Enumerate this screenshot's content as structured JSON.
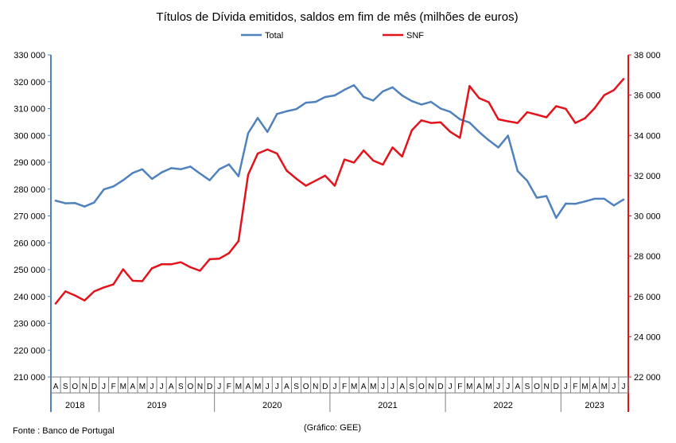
{
  "chart_data": {
    "type": "line",
    "title": "Títulos de Dívida emitidos, saldos em fim de mês  (milhões de euros)",
    "legend": {
      "placement": "top-center"
    },
    "x": [
      "2018-08",
      "2018-09",
      "2018-10",
      "2018-11",
      "2018-12",
      "2019-01",
      "2019-02",
      "2019-03",
      "2019-04",
      "2019-05",
      "2019-06",
      "2019-07",
      "2019-08",
      "2019-09",
      "2019-10",
      "2019-11",
      "2019-12",
      "2020-01",
      "2020-02",
      "2020-03",
      "2020-04",
      "2020-05",
      "2020-06",
      "2020-07",
      "2020-08",
      "2020-09",
      "2020-10",
      "2020-11",
      "2020-12",
      "2021-01",
      "2021-02",
      "2021-03",
      "2021-04",
      "2021-05",
      "2021-06",
      "2021-07",
      "2021-08",
      "2021-09",
      "2021-10",
      "2021-11",
      "2021-12",
      "2022-01",
      "2022-02",
      "2022-03",
      "2022-04",
      "2022-05",
      "2022-06",
      "2022-07",
      "2022-08",
      "2022-09",
      "2022-10",
      "2022-11",
      "2022-12",
      "2023-01",
      "2023-02",
      "2023-03",
      "2023-04",
      "2023-05",
      "2023-06",
      "2023-07"
    ],
    "month_labels": [
      "A",
      "S",
      "O",
      "N",
      "D",
      "J",
      "F",
      "M",
      "A",
      "M",
      "J",
      "J",
      "A",
      "S",
      "O",
      "N",
      "D",
      "J",
      "F",
      "M",
      "A",
      "M",
      "J",
      "J",
      "A",
      "S",
      "O",
      "N",
      "D",
      "J",
      "F",
      "M",
      "A",
      "M",
      "J",
      "J",
      "A",
      "S",
      "O",
      "N",
      "D",
      "J",
      "F",
      "M",
      "A",
      "M",
      "J",
      "J",
      "A",
      "S",
      "O",
      "N",
      "D",
      "J",
      "F",
      "M",
      "A",
      "M",
      "J",
      "J"
    ],
    "years": [
      {
        "label": "2018",
        "start": 0,
        "count": 5
      },
      {
        "label": "2019",
        "start": 5,
        "count": 12
      },
      {
        "label": "2020",
        "start": 17,
        "count": 12
      },
      {
        "label": "2021",
        "start": 29,
        "count": 12
      },
      {
        "label": "2022",
        "start": 41,
        "count": 12
      },
      {
        "label": "2023",
        "start": 53,
        "count": 7
      }
    ],
    "y_left": {
      "min": 210000,
      "max": 330000,
      "step": 10000,
      "tick_labels": [
        "210 000",
        "220 000",
        "230 000",
        "240 000",
        "250 000",
        "260 000",
        "270 000",
        "280 000",
        "290 000",
        "300 000",
        "310 000",
        "320 000",
        "330 000"
      ]
    },
    "y_right": {
      "min": 22000,
      "max": 38000,
      "step": 2000,
      "tick_labels": [
        "22 000",
        "24 000",
        "26 000",
        "28 000",
        "30 000",
        "32 000",
        "34 000",
        "36 000",
        "38 000"
      ]
    },
    "grid": false,
    "series": [
      {
        "name": "Total",
        "axis": "left",
        "color": "#4f81bd",
        "values": [
          275700,
          274700,
          274800,
          273500,
          275000,
          279900,
          281000,
          283300,
          286000,
          287400,
          283800,
          286200,
          287800,
          287400,
          288400,
          285800,
          283300,
          287400,
          289200,
          284800,
          300800,
          306500,
          301300,
          308000,
          309000,
          309800,
          312200,
          312500,
          314300,
          314900,
          317000,
          318700,
          314300,
          313000,
          316400,
          317900,
          314900,
          312800,
          311500,
          312500,
          310000,
          308800,
          306000,
          304800,
          301300,
          298200,
          295500,
          299900,
          286700,
          283100,
          276800,
          277400,
          269300,
          274600,
          274500,
          275400,
          276400,
          276400,
          273900,
          276100
        ]
      },
      {
        "name": "SNF",
        "axis": "right",
        "color": "#e3121b",
        "values": [
          25650,
          26250,
          26050,
          25800,
          26250,
          26450,
          26600,
          27350,
          26780,
          26760,
          27400,
          27600,
          27600,
          27700,
          27450,
          27280,
          27850,
          27880,
          28150,
          28750,
          32050,
          33100,
          33300,
          33100,
          32250,
          31850,
          31500,
          31750,
          32000,
          31500,
          32800,
          32650,
          33250,
          32750,
          32550,
          33400,
          32950,
          34250,
          34750,
          34620,
          34650,
          34180,
          33880,
          36450,
          35850,
          35650,
          34800,
          34700,
          34620,
          35150,
          35030,
          34900,
          35450,
          35320,
          34620,
          34850,
          35350,
          36000,
          36250,
          36800
        ]
      }
    ],
    "notes": {
      "source": "Fonte : Banco de Portugal",
      "credit": "(Gráfico: GEE)"
    }
  }
}
